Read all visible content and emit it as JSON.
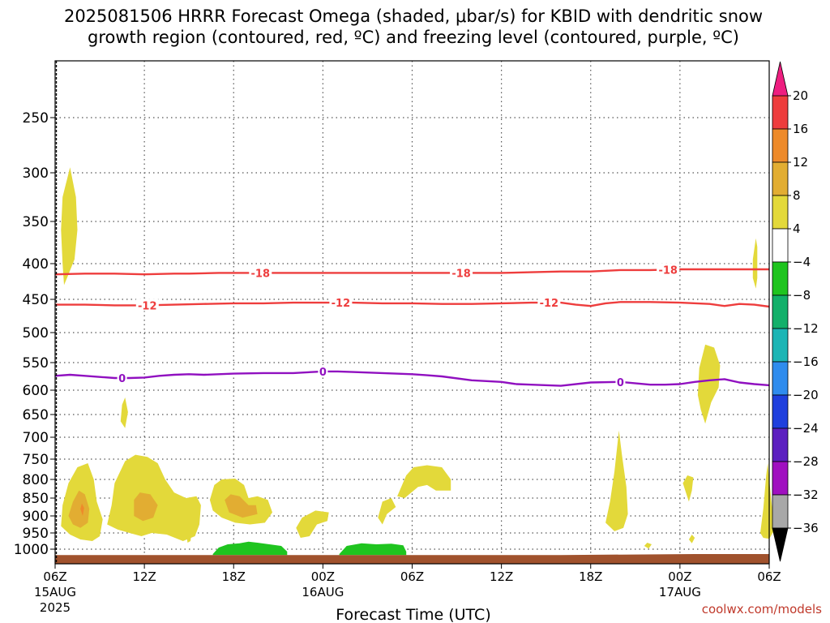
{
  "chart_data": {
    "type": "contour",
    "title_line1": "2025081506 HRRR Forecast Omega (shaded, μbar/s) for KBID with dendritic snow",
    "title_line2": "growth region (contoured, red, ºC) and freezing level (contoured, purple, ºC)",
    "xlabel": "Forecast Time (UTC)",
    "ylabel": "",
    "credit": "coolwx.com/models",
    "x_hours_range": [
      0,
      48
    ],
    "y_pressure_range_hpa": [
      1030,
      200
    ],
    "grid": true,
    "y_ticks": [
      {
        "value": 250,
        "label": "250"
      },
      {
        "value": 300,
        "label": "300"
      },
      {
        "value": 350,
        "label": "350"
      },
      {
        "value": 400,
        "label": "400"
      },
      {
        "value": 450,
        "label": "450"
      },
      {
        "value": 500,
        "label": "500"
      },
      {
        "value": 550,
        "label": "550"
      },
      {
        "value": 600,
        "label": "600"
      },
      {
        "value": 650,
        "label": "650"
      },
      {
        "value": 700,
        "label": "700"
      },
      {
        "value": 750,
        "label": "750"
      },
      {
        "value": 800,
        "label": "800"
      },
      {
        "value": 850,
        "label": "850"
      },
      {
        "value": 900,
        "label": "900"
      },
      {
        "value": 950,
        "label": "950"
      },
      {
        "value": 1000,
        "label": "1000"
      }
    ],
    "x_ticks": [
      {
        "hour": 0,
        "label": "06Z",
        "sub1": "15AUG",
        "sub2": "2025"
      },
      {
        "hour": 6,
        "label": "12Z",
        "sub1": "",
        "sub2": ""
      },
      {
        "hour": 12,
        "label": "18Z",
        "sub1": "",
        "sub2": ""
      },
      {
        "hour": 18,
        "label": "00Z",
        "sub1": "16AUG",
        "sub2": ""
      },
      {
        "hour": 24,
        "label": "06Z",
        "sub1": "",
        "sub2": ""
      },
      {
        "hour": 30,
        "label": "12Z",
        "sub1": "",
        "sub2": ""
      },
      {
        "hour": 36,
        "label": "18Z",
        "sub1": "",
        "sub2": ""
      },
      {
        "hour": 42,
        "label": "00Z",
        "sub1": "17AUG",
        "sub2": ""
      },
      {
        "hour": 48,
        "label": "06Z",
        "sub1": "",
        "sub2": ""
      }
    ],
    "colorbar": {
      "levels": [
        "20",
        "16",
        "12",
        "8",
        "4",
        "−4",
        "−8",
        "−12",
        "−16",
        "−20",
        "−24",
        "−28",
        "−32",
        "−36"
      ],
      "colors": [
        "#ee3d3d",
        "#ee8a2a",
        "#e2ad32",
        "#e3d93a",
        "#ffffff",
        "#1fc41f",
        "#13b06a",
        "#1cb5b5",
        "#2f8cee",
        "#1f3fdd",
        "#5c1fc0",
        "#a010c0",
        "#a8a8a8"
      ],
      "top_color": "#ee1e80",
      "bottom_color": "#000000"
    },
    "omega_colors": {
      "4_to_8": "#e3d93a",
      "8_to_12": "#e2ad32",
      "12_to_16": "#ee8a2a",
      "neg4_to_neg8": "#1fc41f"
    },
    "line_colors": {
      "dgz": "#ee3d3d",
      "freezing": "#9010c0",
      "terrain": "#a0522d"
    },
    "series": [
      {
        "color_key": "dgz",
        "labels": [
          "-18",
          "-18",
          "-18"
        ],
        "label_hours": [
          13.8,
          27.3,
          41.2
        ],
        "x": [
          0,
          2,
          4,
          6,
          8,
          9,
          11,
          12,
          14,
          16,
          18,
          20,
          22,
          24,
          26,
          28,
          30,
          32,
          34,
          36,
          37,
          38,
          40,
          42,
          44,
          46,
          48
        ],
        "y": [
          415,
          414,
          414,
          415,
          414,
          414,
          413,
          413,
          413,
          413,
          413,
          413,
          413,
          413,
          413,
          413,
          413,
          412,
          411,
          411,
          410,
          409,
          409,
          408,
          408,
          408,
          408
        ]
      },
      {
        "color_key": "dgz",
        "labels": [
          "-12",
          "-12",
          "-12"
        ],
        "label_hours": [
          6.2,
          19.2,
          33.2
        ],
        "x": [
          0,
          2,
          4,
          6,
          8,
          10,
          12,
          14,
          16,
          18,
          20,
          22,
          24,
          26,
          28,
          30,
          32,
          34,
          35,
          36,
          37,
          38,
          40,
          42,
          44,
          45,
          46,
          47,
          48
        ],
        "y": [
          458,
          458,
          459,
          459,
          458,
          457,
          456,
          456,
          455,
          455,
          455,
          456,
          456,
          457,
          457,
          456,
          455,
          455,
          458,
          460,
          456,
          454,
          454,
          455,
          457,
          460,
          457,
          458,
          461
        ]
      },
      {
        "color_key": "freezing",
        "labels": [
          "0",
          "0",
          "0"
        ],
        "label_hours": [
          4.5,
          18.0,
          38.0
        ],
        "x": [
          0,
          1,
          2,
          3,
          4,
          5,
          6,
          7,
          8,
          9,
          10,
          12,
          14,
          16,
          18,
          19,
          20,
          22,
          24,
          25,
          26,
          28,
          30,
          31,
          32,
          34,
          36,
          38,
          40,
          41,
          42,
          43,
          44,
          45,
          46,
          47,
          48
        ],
        "y": [
          574,
          572,
          574,
          576,
          578,
          578,
          577,
          574,
          572,
          571,
          572,
          570,
          569,
          569,
          566,
          566,
          567,
          569,
          571,
          573,
          575,
          582,
          585,
          589,
          590,
          592,
          586,
          585,
          590,
          590,
          589,
          585,
          582,
          580,
          586,
          589,
          591
        ]
      }
    ],
    "omega_regions": [
      {
        "value_band": "4_to_8",
        "points": [
          [
            0.6,
            430
          ],
          [
            0.5,
            400
          ],
          [
            0.4,
            360
          ],
          [
            0.5,
            325
          ],
          [
            1.0,
            295
          ],
          [
            1.4,
            325
          ],
          [
            1.5,
            360
          ],
          [
            1.3,
            395
          ],
          [
            0.8,
            420
          ]
        ]
      },
      {
        "value_band": "4_to_8",
        "points": [
          [
            0.4,
            930
          ],
          [
            0.5,
            870
          ],
          [
            0.9,
            810
          ],
          [
            1.5,
            770
          ],
          [
            2.2,
            760
          ],
          [
            2.6,
            800
          ],
          [
            2.8,
            860
          ],
          [
            3.2,
            910
          ],
          [
            3.0,
            960
          ],
          [
            2.5,
            975
          ],
          [
            1.7,
            970
          ],
          [
            1.0,
            955
          ]
        ]
      },
      {
        "value_band": "8_to_12",
        "points": [
          [
            0.9,
            900
          ],
          [
            1.2,
            860
          ],
          [
            1.6,
            830
          ],
          [
            2.0,
            840
          ],
          [
            2.3,
            880
          ],
          [
            2.2,
            920
          ],
          [
            1.7,
            935
          ],
          [
            1.2,
            925
          ]
        ]
      },
      {
        "value_band": "12_to_16",
        "points": [
          [
            1.7,
            880
          ],
          [
            1.8,
            865
          ],
          [
            1.95,
            878
          ],
          [
            1.85,
            900
          ]
        ]
      },
      {
        "value_band": "4_to_8",
        "points": [
          [
            4.4,
            665
          ],
          [
            4.5,
            630
          ],
          [
            4.7,
            615
          ],
          [
            4.9,
            645
          ],
          [
            4.7,
            680
          ]
        ]
      },
      {
        "value_band": "4_to_8",
        "points": [
          [
            3.5,
            925
          ],
          [
            3.8,
            870
          ],
          [
            4.0,
            810
          ],
          [
            4.7,
            755
          ],
          [
            5.4,
            740
          ],
          [
            6.2,
            745
          ],
          [
            6.9,
            760
          ],
          [
            7.4,
            800
          ],
          [
            8.0,
            835
          ],
          [
            8.8,
            850
          ],
          [
            9.5,
            845
          ],
          [
            9.8,
            870
          ],
          [
            9.7,
            925
          ],
          [
            9.4,
            960
          ],
          [
            8.6,
            975
          ],
          [
            7.5,
            955
          ],
          [
            6.5,
            950
          ],
          [
            5.8,
            960
          ],
          [
            5.0,
            950
          ],
          [
            4.2,
            940
          ]
        ]
      },
      {
        "value_band": "8_to_12",
        "points": [
          [
            5.3,
            855
          ],
          [
            5.7,
            835
          ],
          [
            6.4,
            840
          ],
          [
            6.9,
            870
          ],
          [
            6.6,
            905
          ],
          [
            5.9,
            915
          ],
          [
            5.3,
            900
          ]
        ]
      },
      {
        "value_band": "4_to_8",
        "points": [
          [
            8.8,
            945
          ],
          [
            9.2,
            940
          ],
          [
            9.1,
            975
          ],
          [
            8.9,
            980
          ]
        ]
      },
      {
        "value_band": "4_to_8",
        "points": [
          [
            10.4,
            855
          ],
          [
            10.7,
            815
          ],
          [
            11.2,
            800
          ],
          [
            12.1,
            798
          ],
          [
            12.7,
            815
          ],
          [
            13.0,
            850
          ],
          [
            13.6,
            845
          ],
          [
            14.3,
            855
          ],
          [
            14.6,
            890
          ],
          [
            14.1,
            920
          ],
          [
            13.1,
            925
          ],
          [
            12.1,
            920
          ],
          [
            11.2,
            905
          ],
          [
            10.6,
            885
          ]
        ]
      },
      {
        "value_band": "8_to_12",
        "points": [
          [
            11.4,
            855
          ],
          [
            11.8,
            840
          ],
          [
            12.4,
            845
          ],
          [
            13.0,
            870
          ],
          [
            13.5,
            870
          ],
          [
            13.6,
            895
          ],
          [
            12.6,
            905
          ],
          [
            11.7,
            890
          ]
        ]
      },
      {
        "value_band": "4_to_8",
        "points": [
          [
            16.2,
            935
          ],
          [
            16.6,
            905
          ],
          [
            17.5,
            885
          ],
          [
            18.4,
            890
          ],
          [
            18.3,
            915
          ],
          [
            17.6,
            925
          ],
          [
            17.1,
            960
          ],
          [
            16.5,
            965
          ]
        ]
      },
      {
        "value_band": "4_to_8",
        "points": [
          [
            21.7,
            905
          ],
          [
            22.0,
            860
          ],
          [
            22.6,
            850
          ],
          [
            22.9,
            875
          ],
          [
            22.3,
            895
          ],
          [
            22.0,
            925
          ]
        ]
      },
      {
        "value_band": "4_to_8",
        "points": [
          [
            23.0,
            845
          ],
          [
            23.6,
            790
          ],
          [
            24.1,
            770
          ],
          [
            25.0,
            765
          ],
          [
            26.0,
            770
          ],
          [
            26.6,
            800
          ],
          [
            26.6,
            830
          ],
          [
            25.6,
            830
          ],
          [
            25.0,
            815
          ],
          [
            24.4,
            820
          ],
          [
            23.5,
            850
          ]
        ]
      },
      {
        "value_band": "4_to_8",
        "points": [
          [
            37.0,
            920
          ],
          [
            37.3,
            860
          ],
          [
            37.6,
            780
          ],
          [
            37.9,
            685
          ],
          [
            38.1,
            740
          ],
          [
            38.4,
            820
          ],
          [
            38.5,
            895
          ],
          [
            38.2,
            935
          ],
          [
            37.6,
            945
          ]
        ]
      },
      {
        "value_band": "4_to_8",
        "points": [
          [
            39.6,
            990
          ],
          [
            39.8,
            980
          ],
          [
            40.1,
            985
          ],
          [
            39.9,
            998
          ]
        ]
      },
      {
        "value_band": "4_to_8",
        "points": [
          [
            42.2,
            810
          ],
          [
            42.5,
            790
          ],
          [
            42.9,
            795
          ],
          [
            42.8,
            830
          ],
          [
            42.6,
            860
          ],
          [
            42.4,
            835
          ]
        ]
      },
      {
        "value_band": "4_to_8",
        "points": [
          [
            42.6,
            970
          ],
          [
            42.8,
            955
          ],
          [
            43.0,
            965
          ],
          [
            42.8,
            982
          ]
        ]
      },
      {
        "value_band": "4_to_8",
        "points": [
          [
            43.2,
            610
          ],
          [
            43.3,
            560
          ],
          [
            43.7,
            520
          ],
          [
            44.3,
            525
          ],
          [
            44.7,
            555
          ],
          [
            44.6,
            595
          ],
          [
            44.1,
            625
          ],
          [
            43.7,
            670
          ],
          [
            43.4,
            640
          ]
        ]
      },
      {
        "value_band": "4_to_8",
        "points": [
          [
            46.9,
            395
          ],
          [
            47.1,
            370
          ],
          [
            47.2,
            380
          ],
          [
            47.2,
            420
          ],
          [
            47.1,
            435
          ],
          [
            46.9,
            420
          ]
        ]
      },
      {
        "value_band": "4_to_8",
        "points": [
          [
            47.4,
            950
          ],
          [
            47.6,
            880
          ],
          [
            47.8,
            790
          ],
          [
            47.9,
            760
          ],
          [
            48.0,
            800
          ],
          [
            48.2,
            880
          ],
          [
            48.3,
            945
          ],
          [
            48.0,
            968
          ],
          [
            47.6,
            965
          ]
        ]
      },
      {
        "value_band": "neg4_to_neg8",
        "points": [
          [
            10.6,
            1010
          ],
          [
            11.0,
            995
          ],
          [
            11.6,
            985
          ],
          [
            12.4,
            982
          ],
          [
            13.0,
            977
          ],
          [
            13.6,
            980
          ],
          [
            14.4,
            985
          ],
          [
            15.2,
            990
          ],
          [
            15.6,
            1005
          ],
          [
            15.6,
            1012
          ],
          [
            10.6,
            1012
          ]
        ]
      },
      {
        "value_band": "neg4_to_neg8",
        "points": [
          [
            19.1,
            1010
          ],
          [
            19.6,
            990
          ],
          [
            20.6,
            982
          ],
          [
            21.6,
            985
          ],
          [
            22.6,
            983
          ],
          [
            23.4,
            988
          ],
          [
            23.6,
            1005
          ],
          [
            23.6,
            1012
          ],
          [
            19.1,
            1012
          ]
        ]
      }
    ],
    "terrain_top_hpa": 1012,
    "terrain_top_right_hpa": 1010
  }
}
